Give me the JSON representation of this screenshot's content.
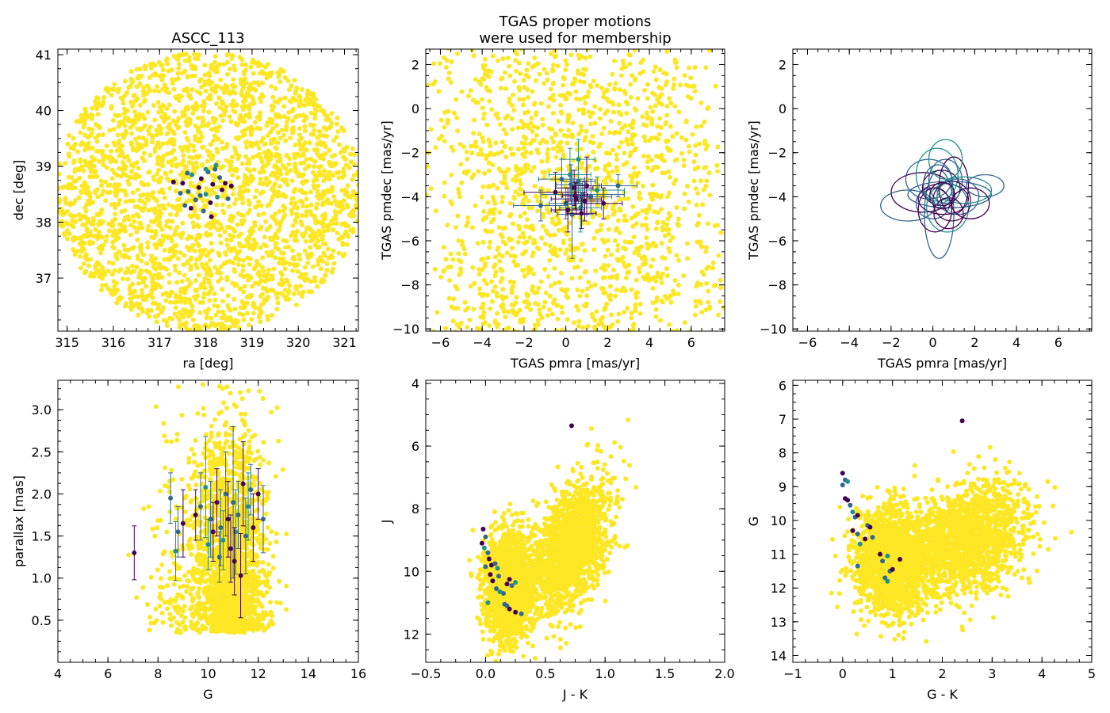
{
  "colors": {
    "nonmember": "#fde725",
    "member_dark": "#440154",
    "member_mid": "#31688e",
    "member_teal": "#21918c",
    "axis": "#000000"
  },
  "chart_data": [
    {
      "id": "radec",
      "type": "scatter",
      "title": "ASCC_113",
      "xlabel": "ra [deg]",
      "ylabel": "dec [deg]",
      "xlim": [
        314.8,
        321.3
      ],
      "ylim": [
        36.05,
        41.1
      ],
      "xticks": [
        315,
        316,
        317,
        318,
        319,
        320,
        321
      ],
      "yticks": [
        37,
        38,
        39,
        40,
        41
      ],
      "background": {
        "shape": "disk",
        "center": [
          318.05,
          38.55
        ],
        "radius_x": 3.3,
        "radius_y": 2.5,
        "count": 2600,
        "seed": 11
      },
      "members": [
        {
          "x": 317.5,
          "y": 38.7
        },
        {
          "x": 317.62,
          "y": 38.55
        },
        {
          "x": 317.7,
          "y": 38.85
        },
        {
          "x": 317.78,
          "y": 38.4
        },
        {
          "x": 317.85,
          "y": 38.62
        },
        {
          "x": 317.9,
          "y": 38.78
        },
        {
          "x": 317.95,
          "y": 38.2
        },
        {
          "x": 318.0,
          "y": 38.5
        },
        {
          "x": 318.05,
          "y": 38.9
        },
        {
          "x": 318.1,
          "y": 38.35
        },
        {
          "x": 318.15,
          "y": 38.68
        },
        {
          "x": 318.2,
          "y": 38.95
        },
        {
          "x": 318.25,
          "y": 38.45
        },
        {
          "x": 318.3,
          "y": 38.8
        },
        {
          "x": 318.35,
          "y": 38.58
        },
        {
          "x": 318.42,
          "y": 38.7
        },
        {
          "x": 317.55,
          "y": 38.3
        },
        {
          "x": 318.0,
          "y": 38.95
        },
        {
          "x": 318.48,
          "y": 38.42
        },
        {
          "x": 317.68,
          "y": 38.25
        },
        {
          "x": 318.55,
          "y": 38.65
        },
        {
          "x": 317.45,
          "y": 38.52
        },
        {
          "x": 318.22,
          "y": 39.02
        },
        {
          "x": 317.88,
          "y": 38.48
        },
        {
          "x": 318.12,
          "y": 38.1
        },
        {
          "x": 317.3,
          "y": 38.72
        },
        {
          "x": 317.6,
          "y": 38.88
        }
      ]
    },
    {
      "id": "pm",
      "type": "scatter",
      "title": "TGAS proper motions\nwere used for membership",
      "xlabel": "TGAS pmra [mas/yr]",
      "ylabel": "TGAS pmdec [mas/yr]",
      "xlim": [
        -6.7,
        7.6
      ],
      "ylim": [
        -10.1,
        2.7
      ],
      "xticks": [
        -6,
        -4,
        -2,
        0,
        2,
        4,
        6
      ],
      "yticks": [
        -10,
        -8,
        -6,
        -4,
        -2,
        0,
        2
      ],
      "background": {
        "shape": "cloud",
        "center": [
          0.5,
          -4.0
        ],
        "radius_x": 5.5,
        "radius_y": 6.5,
        "count": 1500,
        "seed": 23
      },
      "members": [
        {
          "x": -0.5,
          "y": -3.8,
          "xerr": 1.5,
          "yerr": 0.9
        },
        {
          "x": 0.0,
          "y": -4.3,
          "xerr": 0.8,
          "yerr": 0.7
        },
        {
          "x": 0.2,
          "y": -3.0,
          "xerr": 1.0,
          "yerr": 1.2
        },
        {
          "x": 0.3,
          "y": -4.8,
          "xerr": 0.7,
          "yerr": 2.0
        },
        {
          "x": 0.4,
          "y": -3.6,
          "xerr": 0.9,
          "yerr": 0.8
        },
        {
          "x": 0.5,
          "y": -4.1,
          "xerr": 1.2,
          "yerr": 0.7
        },
        {
          "x": 0.6,
          "y": -3.3,
          "xerr": 0.8,
          "yerr": 1.0
        },
        {
          "x": 0.7,
          "y": -4.5,
          "xerr": 1.0,
          "yerr": 1.1
        },
        {
          "x": 0.8,
          "y": -3.9,
          "xerr": 2.0,
          "yerr": 0.6
        },
        {
          "x": 0.9,
          "y": -4.2,
          "xerr": 0.9,
          "yerr": 0.9
        },
        {
          "x": 1.0,
          "y": -3.5,
          "xerr": 0.7,
          "yerr": 1.3
        },
        {
          "x": 1.2,
          "y": -4.0,
          "xerr": 1.0,
          "yerr": 0.8
        },
        {
          "x": 1.5,
          "y": -3.7,
          "xerr": 1.3,
          "yerr": 0.6
        },
        {
          "x": -0.2,
          "y": -3.2,
          "xerr": 1.1,
          "yerr": 0.9
        },
        {
          "x": 0.1,
          "y": -4.6,
          "xerr": 0.8,
          "yerr": 1.0
        },
        {
          "x": 1.8,
          "y": -4.3,
          "xerr": 0.9,
          "yerr": 0.7
        },
        {
          "x": -1.2,
          "y": -4.4,
          "xerr": 1.3,
          "yerr": 0.7
        },
        {
          "x": 0.6,
          "y": -2.3,
          "xerr": 0.8,
          "yerr": 0.9
        },
        {
          "x": 2.5,
          "y": -3.5,
          "xerr": 0.9,
          "yerr": 0.5
        },
        {
          "x": 0.45,
          "y": -3.95,
          "xerr": 0.6,
          "yerr": 0.6
        },
        {
          "x": 0.75,
          "y": -4.75,
          "xerr": 0.7,
          "yerr": 0.7
        },
        {
          "x": 0.25,
          "y": -3.45,
          "xerr": 0.7,
          "yerr": 0.9
        }
      ]
    },
    {
      "id": "pmellipse",
      "type": "ellipses",
      "title": "",
      "xlabel": "TGAS pmra [mas/yr]",
      "ylabel": "TGAS pmdec [mas/yr]",
      "xlim": [
        -6.7,
        7.6
      ],
      "ylim": [
        -10.1,
        2.7
      ],
      "xticks": [
        -6,
        -4,
        -2,
        0,
        2,
        4,
        6
      ],
      "yticks": [
        -10,
        -8,
        -6,
        -4,
        -2,
        0,
        2
      ],
      "members": [
        {
          "x": -0.5,
          "y": -3.8,
          "xerr": 1.5,
          "yerr": 0.9
        },
        {
          "x": 0.0,
          "y": -4.3,
          "xerr": 0.8,
          "yerr": 0.7
        },
        {
          "x": 0.2,
          "y": -3.0,
          "xerr": 1.0,
          "yerr": 1.2
        },
        {
          "x": 0.3,
          "y": -4.8,
          "xerr": 0.7,
          "yerr": 2.0
        },
        {
          "x": 0.4,
          "y": -3.6,
          "xerr": 0.9,
          "yerr": 0.8
        },
        {
          "x": 0.5,
          "y": -4.1,
          "xerr": 1.2,
          "yerr": 0.7
        },
        {
          "x": 0.6,
          "y": -3.3,
          "xerr": 0.8,
          "yerr": 1.0
        },
        {
          "x": 0.7,
          "y": -4.5,
          "xerr": 1.0,
          "yerr": 1.1
        },
        {
          "x": 0.8,
          "y": -3.9,
          "xerr": 2.0,
          "yerr": 0.6
        },
        {
          "x": 0.9,
          "y": -4.2,
          "xerr": 0.9,
          "yerr": 0.9
        },
        {
          "x": 1.0,
          "y": -3.5,
          "xerr": 0.7,
          "yerr": 1.3
        },
        {
          "x": 1.2,
          "y": -4.0,
          "xerr": 1.0,
          "yerr": 0.8
        },
        {
          "x": 1.5,
          "y": -3.7,
          "xerr": 1.3,
          "yerr": 0.6
        },
        {
          "x": -0.2,
          "y": -3.2,
          "xerr": 1.1,
          "yerr": 0.9
        },
        {
          "x": 0.1,
          "y": -4.6,
          "xerr": 0.8,
          "yerr": 1.0
        },
        {
          "x": 1.8,
          "y": -4.3,
          "xerr": 0.9,
          "yerr": 0.7
        },
        {
          "x": -1.2,
          "y": -4.4,
          "xerr": 1.3,
          "yerr": 0.7
        },
        {
          "x": 0.6,
          "y": -2.3,
          "xerr": 0.8,
          "yerr": 0.9
        },
        {
          "x": 2.5,
          "y": -3.5,
          "xerr": 0.9,
          "yerr": 0.5
        },
        {
          "x": 0.45,
          "y": -3.95,
          "xerr": 0.6,
          "yerr": 0.6
        },
        {
          "x": 0.75,
          "y": -4.75,
          "xerr": 0.7,
          "yerr": 0.7
        },
        {
          "x": 0.25,
          "y": -3.45,
          "xerr": 0.7,
          "yerr": 0.9
        }
      ]
    },
    {
      "id": "plx",
      "type": "scatter",
      "title": "",
      "xlabel": "G",
      "ylabel": "parallax [mas]",
      "xlim": [
        4,
        16
      ],
      "ylim": [
        0.0,
        3.35
      ],
      "xticks": [
        4,
        6,
        8,
        10,
        12,
        14,
        16
      ],
      "yticks": [
        0.5,
        1.0,
        1.5,
        2.0,
        2.5,
        3.0
      ],
      "ytick_labels": [
        "0.5",
        "1.0",
        "1.5",
        "2.0",
        "2.5",
        "3.0"
      ],
      "background": {
        "shape": "plx",
        "count": 2000,
        "seed": 37
      },
      "members": [
        {
          "x": 7.05,
          "y": 1.3,
          "yerr": 0.32
        },
        {
          "x": 8.5,
          "y": 1.95,
          "yerr": 0.3
        },
        {
          "x": 8.7,
          "y": 1.32,
          "yerr": 0.35
        },
        {
          "x": 8.8,
          "y": 1.55,
          "yerr": 0.3
        },
        {
          "x": 9.0,
          "y": 1.65,
          "yerr": 0.4
        },
        {
          "x": 9.5,
          "y": 1.75,
          "yerr": 0.3
        },
        {
          "x": 9.7,
          "y": 1.85,
          "yerr": 0.4
        },
        {
          "x": 9.9,
          "y": 2.08,
          "yerr": 0.6
        },
        {
          "x": 10.1,
          "y": 1.7,
          "yerr": 0.45
        },
        {
          "x": 10.2,
          "y": 1.55,
          "yerr": 0.35
        },
        {
          "x": 10.35,
          "y": 1.9,
          "yerr": 0.4
        },
        {
          "x": 10.5,
          "y": 1.6,
          "yerr": 0.45
        },
        {
          "x": 10.6,
          "y": 1.45,
          "yerr": 0.35
        },
        {
          "x": 10.7,
          "y": 2.0,
          "yerr": 0.5
        },
        {
          "x": 10.8,
          "y": 1.7,
          "yerr": 0.45
        },
        {
          "x": 10.9,
          "y": 1.35,
          "yerr": 0.4
        },
        {
          "x": 11.0,
          "y": 1.9,
          "yerr": 0.9
        },
        {
          "x": 11.1,
          "y": 1.55,
          "yerr": 0.5
        },
        {
          "x": 11.2,
          "y": 1.75,
          "yerr": 0.4
        },
        {
          "x": 11.3,
          "y": 1.03,
          "yerr": 0.5
        },
        {
          "x": 11.4,
          "y": 2.12,
          "yerr": 0.5
        },
        {
          "x": 11.5,
          "y": 1.5,
          "yerr": 0.45
        },
        {
          "x": 11.6,
          "y": 1.85,
          "yerr": 0.4
        },
        {
          "x": 11.7,
          "y": 2.05,
          "yerr": 0.3
        },
        {
          "x": 11.8,
          "y": 1.6,
          "yerr": 0.4
        },
        {
          "x": 12.0,
          "y": 2.0,
          "yerr": 0.3
        },
        {
          "x": 12.2,
          "y": 1.7,
          "yerr": 0.4
        },
        {
          "x": 10.0,
          "y": 1.4,
          "yerr": 0.3
        },
        {
          "x": 10.45,
          "y": 1.25,
          "yerr": 0.3
        },
        {
          "x": 11.05,
          "y": 1.2,
          "yerr": 0.4
        }
      ]
    },
    {
      "id": "cmd_jk",
      "type": "scatter",
      "title": "",
      "xlabel": "J - K",
      "ylabel": "J",
      "xlim": [
        -0.5,
        2.0
      ],
      "ylim": [
        12.9,
        3.9
      ],
      "xticks": [
        -0.5,
        0.0,
        0.5,
        1.0,
        1.5,
        2.0
      ],
      "xtick_labels": [
        "−0.5",
        "0.0",
        "0.5",
        "1.0",
        "1.5",
        "2.0"
      ],
      "yticks": [
        4,
        6,
        8,
        10,
        12
      ],
      "background": {
        "shape": "cmd_jk",
        "count": 3400,
        "seed": 51
      },
      "members": [
        {
          "x": -0.02,
          "y": 8.65
        },
        {
          "x": 0.0,
          "y": 8.9
        },
        {
          "x": -0.01,
          "y": 9.25
        },
        {
          "x": 0.02,
          "y": 9.4
        },
        {
          "x": 0.03,
          "y": 9.6
        },
        {
          "x": 0.05,
          "y": 9.8
        },
        {
          "x": 0.08,
          "y": 9.75
        },
        {
          "x": 0.1,
          "y": 9.9
        },
        {
          "x": 0.0,
          "y": 9.85
        },
        {
          "x": 0.04,
          "y": 10.1
        },
        {
          "x": 0.06,
          "y": 10.3
        },
        {
          "x": 0.09,
          "y": 10.55
        },
        {
          "x": 0.12,
          "y": 10.65
        },
        {
          "x": 0.15,
          "y": 10.7
        },
        {
          "x": 0.18,
          "y": 10.4
        },
        {
          "x": 0.2,
          "y": 10.25
        },
        {
          "x": 0.22,
          "y": 10.45
        },
        {
          "x": 0.25,
          "y": 10.35
        },
        {
          "x": 0.18,
          "y": 11.1
        },
        {
          "x": 0.2,
          "y": 11.2
        },
        {
          "x": 0.25,
          "y": 11.3
        },
        {
          "x": 0.3,
          "y": 11.35
        },
        {
          "x": 0.02,
          "y": 11.0
        },
        {
          "x": 0.16,
          "y": 11.05
        },
        {
          "x": 0.72,
          "y": 5.35
        },
        {
          "x": -0.03,
          "y": 9.1
        },
        {
          "x": 0.11,
          "y": 10.15
        }
      ]
    },
    {
      "id": "cmd_gk",
      "type": "scatter",
      "title": "",
      "xlabel": "G - K",
      "ylabel": "G",
      "xlim": [
        -1,
        5
      ],
      "ylim": [
        14.2,
        5.85
      ],
      "xticks": [
        -1,
        0,
        1,
        2,
        3,
        4,
        5
      ],
      "xtick_labels": [
        "−1",
        "0",
        "1",
        "2",
        "3",
        "4",
        "5"
      ],
      "yticks": [
        6,
        7,
        8,
        9,
        10,
        11,
        12,
        13,
        14
      ],
      "background": {
        "shape": "cmd_gk",
        "count": 3400,
        "seed": 73
      },
      "members": [
        {
          "x": 0.0,
          "y": 8.6
        },
        {
          "x": 0.05,
          "y": 8.8
        },
        {
          "x": 0.1,
          "y": 8.85
        },
        {
          "x": 0.0,
          "y": 8.95
        },
        {
          "x": 0.05,
          "y": 9.35
        },
        {
          "x": 0.1,
          "y": 9.4
        },
        {
          "x": 0.15,
          "y": 9.55
        },
        {
          "x": 0.2,
          "y": 9.75
        },
        {
          "x": 0.25,
          "y": 9.9
        },
        {
          "x": 0.3,
          "y": 9.85
        },
        {
          "x": 0.2,
          "y": 10.3
        },
        {
          "x": 0.3,
          "y": 10.4
        },
        {
          "x": 0.35,
          "y": 10.7
        },
        {
          "x": 0.5,
          "y": 10.15
        },
        {
          "x": 0.55,
          "y": 10.2
        },
        {
          "x": 0.75,
          "y": 11.0
        },
        {
          "x": 0.8,
          "y": 11.2
        },
        {
          "x": 0.9,
          "y": 11.05
        },
        {
          "x": 0.95,
          "y": 11.5
        },
        {
          "x": 1.0,
          "y": 11.45
        },
        {
          "x": 1.15,
          "y": 11.15
        },
        {
          "x": 0.85,
          "y": 11.7
        },
        {
          "x": 0.9,
          "y": 11.8
        },
        {
          "x": 0.3,
          "y": 11.35
        },
        {
          "x": 2.4,
          "y": 7.05
        },
        {
          "x": 0.45,
          "y": 10.55
        },
        {
          "x": 0.6,
          "y": 10.5
        }
      ]
    }
  ]
}
